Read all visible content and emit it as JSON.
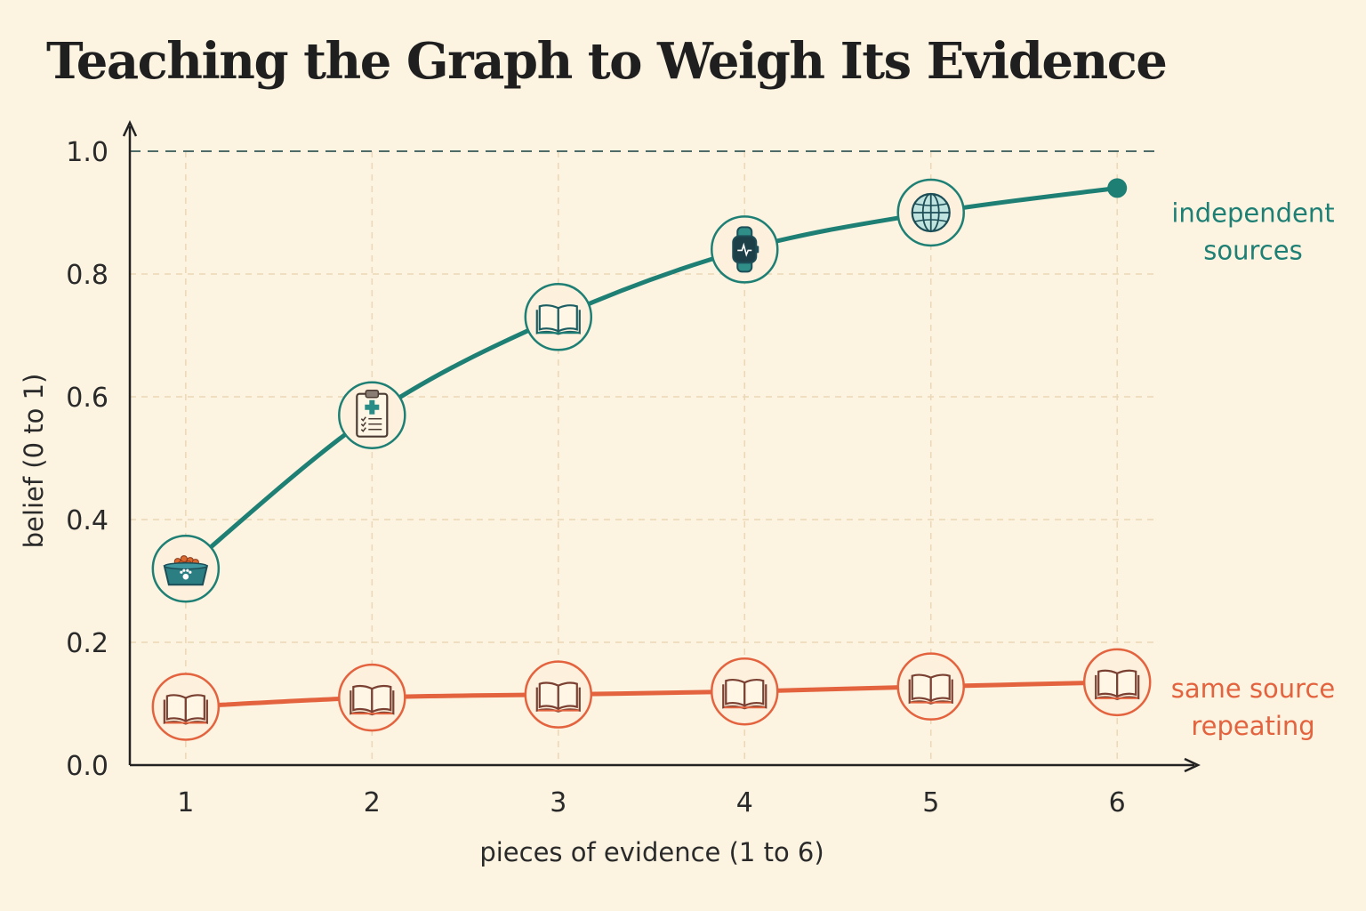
{
  "chart_data": {
    "type": "line",
    "title": "Teaching the Graph to Weigh Its Evidence",
    "xlabel": "pieces of evidence (1 to 6)",
    "ylabel": "belief (0 to 1)",
    "x": [
      1,
      2,
      3,
      4,
      5,
      6
    ],
    "xlim": [
      0.7,
      6.4
    ],
    "ylim": [
      0,
      1.0
    ],
    "yticks": [
      "0.0",
      "0.2",
      "0.4",
      "0.6",
      "0.8",
      "1.0"
    ],
    "xticks": [
      "1",
      "2",
      "3",
      "4",
      "5",
      "6"
    ],
    "reference_line": {
      "y": 1.0,
      "style": "dashed"
    },
    "grid": true,
    "series": [
      {
        "name_lines": [
          "independent",
          "sources"
        ],
        "color": "#1e7f74",
        "values": [
          0.32,
          0.57,
          0.73,
          0.84,
          0.9,
          0.94
        ],
        "markers": [
          "pet-food-bowl-icon",
          "medical-clipboard-icon",
          "open-book-icon",
          "smartwatch-icon",
          "globe-icon",
          "dot"
        ]
      },
      {
        "name_lines": [
          "same source",
          "repeating"
        ],
        "color": "#e4633f",
        "values": [
          0.095,
          0.11,
          0.115,
          0.12,
          0.128,
          0.135
        ],
        "markers": [
          "open-book-icon",
          "open-book-icon",
          "open-book-icon",
          "open-book-icon",
          "open-book-icon",
          "open-book-icon"
        ]
      }
    ]
  }
}
